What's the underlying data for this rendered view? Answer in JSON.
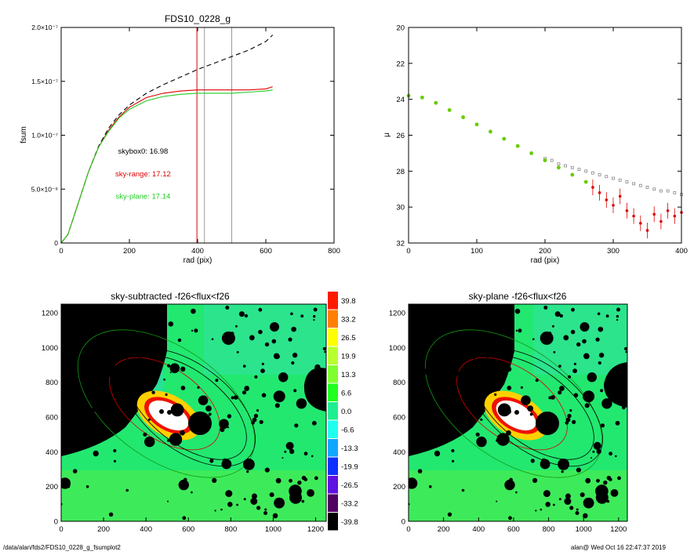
{
  "footer": {
    "path": "/data/alan/fds2/FDS10_0228_g_fsumplot2",
    "stamp": "alan@  Wed Oct 16 22:47:37 2019"
  },
  "chart_data": [
    {
      "type": "line",
      "title": "FDS10_0228_g",
      "xlabel": "rad (pix)",
      "ylabel": "fsum",
      "xlim": [
        0,
        800
      ],
      "ylim": [
        0,
        2e-07
      ],
      "xticks": [
        "0",
        "200",
        "400",
        "600",
        "800"
      ],
      "yticks": [
        {
          "value": 0,
          "label": "0"
        },
        {
          "value": 5e-08,
          "label": "5.0×10⁻⁸"
        },
        {
          "value": 1e-07,
          "label": "1.0×10⁻⁷"
        },
        {
          "value": 1.5e-07,
          "label": "1.5×10⁻⁷"
        },
        {
          "value": 2e-07,
          "label": "2.0×10⁻⁷"
        }
      ],
      "vlines": [
        {
          "x": 398,
          "color": "#dd0000"
        },
        {
          "x": 420,
          "color": "#999999"
        },
        {
          "x": 500,
          "color": "#999999"
        }
      ],
      "series": [
        {
          "color": "#000000",
          "dash": true,
          "x": [
            0,
            20,
            50,
            80,
            110,
            140,
            170,
            200,
            250,
            300,
            350,
            400,
            450,
            500,
            550,
            600,
            620
          ],
          "y": [
            0,
            8e-09,
            3.7e-08,
            6.6e-08,
            9e-08,
            1.07e-07,
            1.19e-07,
            1.28e-07,
            1.39e-07,
            1.47e-07,
            1.54e-07,
            1.61e-07,
            1.67e-07,
            1.73e-07,
            1.79e-07,
            1.87e-07,
            1.93e-07
          ]
        },
        {
          "color": "#dd0000",
          "dash": false,
          "x": [
            0,
            20,
            50,
            80,
            110,
            140,
            170,
            200,
            250,
            300,
            350,
            400,
            450,
            500,
            550,
            600,
            620
          ],
          "y": [
            0,
            8e-09,
            3.7e-08,
            6.6e-08,
            8.9e-08,
            1.05e-07,
            1.17e-07,
            1.26e-07,
            1.35e-07,
            1.39e-07,
            1.41e-07,
            1.42e-07,
            1.42e-07,
            1.42e-07,
            1.42e-07,
            1.43e-07,
            1.45e-07
          ]
        },
        {
          "color": "#22cc22",
          "dash": false,
          "x": [
            0,
            20,
            50,
            80,
            110,
            140,
            170,
            200,
            250,
            300,
            350,
            400,
            450,
            500,
            550,
            600,
            620
          ],
          "y": [
            0,
            8e-09,
            3.7e-08,
            6.6e-08,
            8.9e-08,
            1.04e-07,
            1.16e-07,
            1.24e-07,
            1.32e-07,
            1.36e-07,
            1.38e-07,
            1.39e-07,
            1.39e-07,
            1.39e-07,
            1.4e-07,
            1.41e-07,
            1.42e-07
          ]
        }
      ],
      "annotations": [
        {
          "text": "skybox0: 16.98",
          "x": 240,
          "y": 8.3e-08,
          "color": "#000000"
        },
        {
          "text": "sky-range: 17.12",
          "x": 240,
          "y": 6.2e-08,
          "color": "#dd0000"
        },
        {
          "text": "sky-plane: 17.14",
          "x": 240,
          "y": 4.1e-08,
          "color": "#22cc22"
        }
      ]
    },
    {
      "type": "scatter",
      "title": "",
      "xlabel": "rad (pix)",
      "ylabel": "μ",
      "xlim": [
        0,
        400
      ],
      "ylim": [
        32,
        20
      ],
      "xticks": [
        "0",
        "100",
        "200",
        "300",
        "400"
      ],
      "yticks": [
        "20",
        "22",
        "24",
        "26",
        "28",
        "30",
        "32"
      ],
      "series": [
        {
          "color": "#888888",
          "marker": "square",
          "x": [
            200,
            210,
            220,
            230,
            240,
            250,
            260,
            270,
            280,
            290,
            300,
            310,
            320,
            330,
            340,
            350,
            360,
            370,
            380,
            390,
            400
          ],
          "y": [
            27.3,
            27.4,
            27.6,
            27.7,
            27.8,
            27.9,
            28.0,
            28.1,
            28.2,
            28.3,
            28.4,
            28.5,
            28.6,
            28.7,
            28.8,
            28.9,
            29.0,
            29.1,
            29.1,
            29.2,
            29.3
          ]
        },
        {
          "color": "#66cc00",
          "marker": "dot",
          "x": [
            0,
            20,
            40,
            60,
            80,
            100,
            120,
            140,
            160,
            180,
            200,
            220,
            240,
            260
          ],
          "y": [
            23.8,
            23.9,
            24.2,
            24.6,
            25.0,
            25.4,
            25.8,
            26.2,
            26.6,
            27.0,
            27.4,
            27.8,
            28.2,
            28.6
          ]
        },
        {
          "color": "#dd0000",
          "marker": "errorbar",
          "x": [
            270,
            280,
            290,
            300,
            310,
            320,
            330,
            340,
            350,
            360,
            370,
            380,
            390,
            400
          ],
          "y": [
            28.9,
            29.2,
            29.6,
            29.9,
            29.4,
            30.2,
            30.5,
            30.9,
            31.3,
            30.4,
            30.8,
            30.2,
            30.5,
            30.3
          ]
        }
      ]
    },
    {
      "type": "heatmap",
      "title": "sky-subtracted -f26<flux<f26",
      "xlim": [
        0,
        1250
      ],
      "ylim": [
        0,
        1250
      ],
      "xticks": [
        "0",
        "200",
        "400",
        "600",
        "800",
        "1000",
        "1200"
      ],
      "yticks": [
        "0",
        "200",
        "400",
        "600",
        "800",
        "1000",
        "1200"
      ]
    },
    {
      "type": "heatmap",
      "title": "sky-plane -f26<flux<f26",
      "xlim": [
        0,
        1250
      ],
      "ylim": [
        0,
        1250
      ],
      "xticks": [
        "0",
        "200",
        "400",
        "600",
        "800",
        "1000",
        "1200"
      ],
      "yticks": [
        "0",
        "200",
        "400",
        "600",
        "800",
        "1000",
        "1200"
      ]
    }
  ],
  "colorbar": {
    "levels": [
      {
        "label": "39.8",
        "color": "#ff1a00"
      },
      {
        "label": "33.2",
        "color": "#ff8000"
      },
      {
        "label": "26.5",
        "color": "#ffff00"
      },
      {
        "label": "19.9",
        "color": "#b8ff30"
      },
      {
        "label": "13.3",
        "color": "#80ff30"
      },
      {
        "label": "6.6",
        "color": "#20ff20"
      },
      {
        "label": "0.0",
        "color": "#20ee90"
      },
      {
        "label": "-6.6",
        "color": "#20ffee"
      },
      {
        "label": "-13.3",
        "color": "#10a8ff"
      },
      {
        "label": "-19.9",
        "color": "#1030ff"
      },
      {
        "label": "-26.5",
        "color": "#6010e0"
      },
      {
        "label": "-33.2",
        "color": "#500060"
      },
      {
        "label": "-39.8",
        "color": "#000000"
      }
    ]
  }
}
